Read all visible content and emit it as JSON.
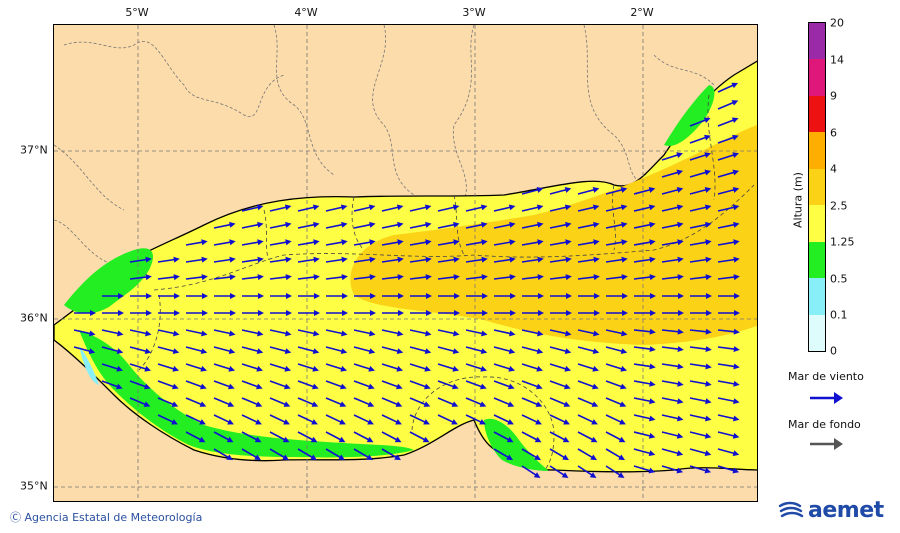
{
  "map": {
    "lon_labels": [
      "5°W",
      "4°W",
      "3°W",
      "2°W"
    ],
    "lat_labels": [
      "37°N",
      "36°N",
      "35°N"
    ]
  },
  "colorbar": {
    "title": "Altura (m)",
    "ticks": [
      "20",
      "14",
      "9",
      "6",
      "4",
      "2.5",
      "1.25",
      "0.5",
      "0.1",
      "0"
    ],
    "colors": [
      "#9a2aa8",
      "#e0177a",
      "#ee1111",
      "#fdae00",
      "#fcd217",
      "#fefe44",
      "#22ee22",
      "#88eef8",
      "#dffcfc"
    ]
  },
  "legend": {
    "wind_sea": "Mar de viento",
    "swell": "Mar de fondo",
    "wind_color": "#1010d0",
    "swell_color": "#555555"
  },
  "footer": {
    "credit": "Ⓒ Agencia Estatal de Meteorología",
    "brand": "aemet"
  },
  "colors": {
    "land": "#fcdcaa",
    "sea_yellow": "#fefe44",
    "sea_orange": "#fcd217",
    "sea_green": "#22ee22",
    "sea_cyan": "#88eef8"
  }
}
